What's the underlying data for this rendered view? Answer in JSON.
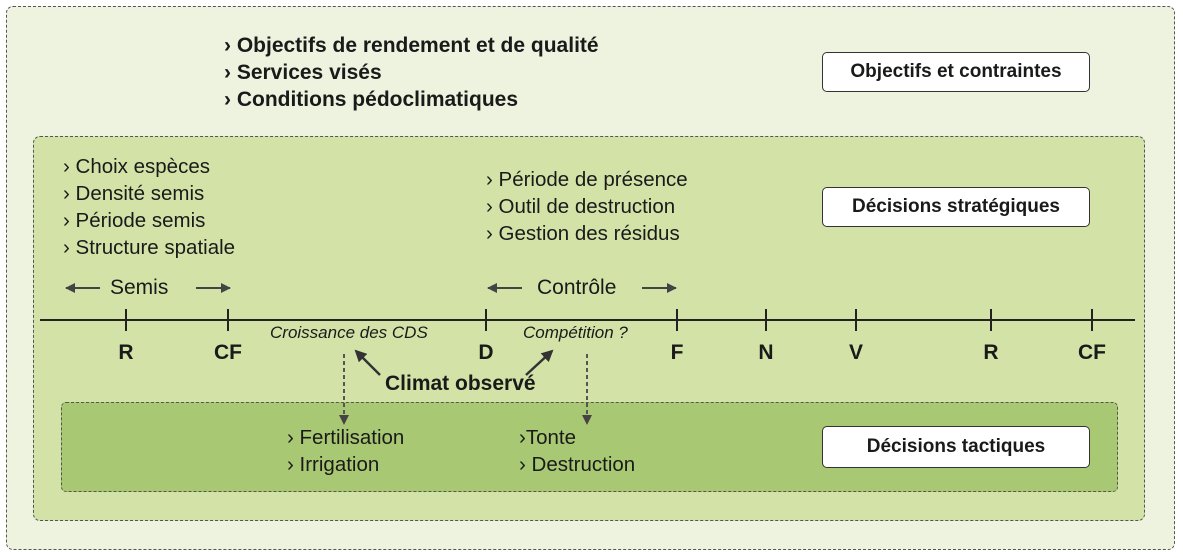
{
  "objectives": {
    "items": [
      "› Objectifs de rendement et de qualité",
      "› Services visés",
      "› Conditions pédoclimatiques"
    ],
    "tag": "Objectifs et contraintes"
  },
  "strategic": {
    "left_items": [
      "› Choix espèces",
      "› Densité semis",
      "› Période semis",
      "› Structure spatiale"
    ],
    "right_items": [
      "› Période de présence",
      "› Outil de destruction",
      "› Gestion des résidus"
    ],
    "tag": "Décisions stratégiques"
  },
  "timeline": {
    "ranges": {
      "semis": "Semis",
      "controle": "Contrôle"
    },
    "ticks": [
      "R",
      "CF",
      "D",
      "F",
      "N",
      "V",
      "R",
      "CF"
    ],
    "growth_label": "Croissance des CDS",
    "competition_label": "Compétition ?",
    "climate_label": "Climat observé"
  },
  "tactical": {
    "left_items": [
      "› Fertilisation",
      "› Irrigation"
    ],
    "right_items": [
      "›Tonte",
      "› Destruction"
    ],
    "tag": "Décisions tactiques"
  },
  "colors": {
    "outer_fill": "#eef3df",
    "middle_fill": "#d3e3a8",
    "inner_fill": "#a9c873",
    "line": "#222222",
    "arrow": "#444444"
  }
}
